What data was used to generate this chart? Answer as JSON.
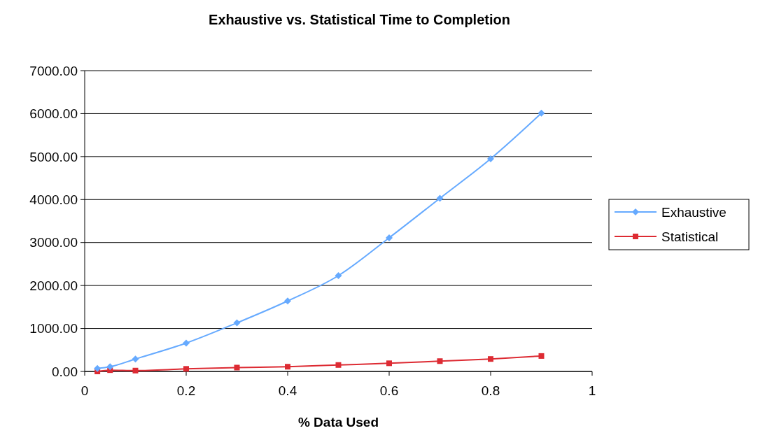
{
  "chart_data": {
    "type": "line",
    "title": "Exhaustive vs. Statistical Time to Completion",
    "xlabel": "% Data Used",
    "x": [
      0.025,
      0.05,
      0.1,
      0.2,
      0.3,
      0.4,
      0.5,
      0.6,
      0.7,
      0.8,
      0.9
    ],
    "series": [
      {
        "name": "Exhaustive",
        "color": "#66aaff",
        "marker": "diamond",
        "values": [
          70,
          110,
          290,
          660,
          1130,
          1640,
          2230,
          3110,
          4030,
          4950,
          6010
        ]
      },
      {
        "name": "Statistical",
        "color": "#dd2b33",
        "marker": "square",
        "values": [
          0,
          30,
          20,
          60,
          90,
          110,
          150,
          190,
          240,
          290,
          360
        ]
      }
    ],
    "xlim": [
      0,
      1
    ],
    "xticks": [
      0,
      0.2,
      0.4,
      0.6,
      0.8,
      1
    ],
    "ylim": [
      0,
      7000
    ],
    "yticks": [
      {
        "value": 0,
        "label": "0.00"
      },
      {
        "value": 1000,
        "label": "1000.00"
      },
      {
        "value": 2000,
        "label": "2000.00"
      },
      {
        "value": 3000,
        "label": "3000.00"
      },
      {
        "value": 4000,
        "label": "4000.00"
      },
      {
        "value": 5000,
        "label": "5000.00"
      },
      {
        "value": 6000,
        "label": "6000.00"
      },
      {
        "value": 7000,
        "label": "7000.00"
      }
    ],
    "grid": "y",
    "legend": "right",
    "line_style": "solid"
  }
}
